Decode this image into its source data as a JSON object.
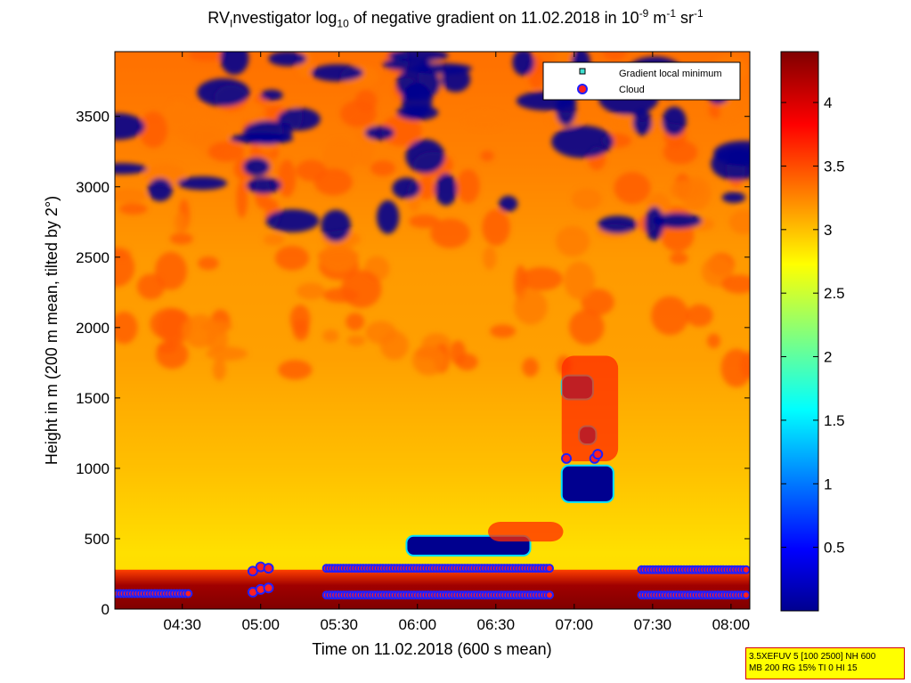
{
  "title": {
    "prefix": "RV",
    "sub1": "I",
    "part2": "nvestigator log",
    "sub2": "10",
    "part3": " of negative gradient on 11.02.2018 in 10",
    "sup1": "-9",
    "part4": " m",
    "sup2": "-1",
    "part5": " sr",
    "sup3": "-1"
  },
  "info_box": {
    "line1": "3.5XEFUV 5 [100 2500] NH 600",
    "line2": "MB 200 RG 15% TI 0 HI 15"
  },
  "colors": {
    "colormap": "jet",
    "cloud_fill": "#ff2020",
    "cloud_edge": "#2020ff",
    "minimum_marker": "#40e0d0"
  },
  "chart_data": {
    "type": "heatmap",
    "xlabel": "Time on 11.02.2018 (600 s mean)",
    "ylabel": "Height in m (200 m mean, tilted by 2°)",
    "x_ticks": [
      "04:30",
      "05:00",
      "05:30",
      "06:00",
      "06:30",
      "07:00",
      "07:30",
      "08:00"
    ],
    "x_tick_hours": [
      4.5,
      5.0,
      5.5,
      6.0,
      6.5,
      7.0,
      7.5,
      8.0
    ],
    "xlim_hours": [
      4.07,
      8.12
    ],
    "y_ticks": [
      0,
      500,
      1000,
      1500,
      2000,
      2500,
      3000,
      3500
    ],
    "ylim": [
      0,
      3960
    ],
    "colorbar": {
      "ticks": [
        0.5,
        1,
        1.5,
        2,
        2.5,
        3,
        3.5,
        4
      ],
      "range": [
        0,
        4.4
      ]
    },
    "legend": {
      "position": "top-right",
      "entries": [
        {
          "name": "Gradient local minimum",
          "marker": "square",
          "color": "#40e0d0"
        },
        {
          "name": "Cloud",
          "marker": "circle",
          "color": "#ff2020",
          "edge": "#2020ff"
        }
      ]
    },
    "low_value_regions": [
      {
        "t0": 5.93,
        "t1": 6.72,
        "h0": 380,
        "h1": 520
      },
      {
        "t0": 6.92,
        "t1": 7.25,
        "h0": 760,
        "h1": 1020
      },
      {
        "t0": 6.92,
        "t1": 7.12,
        "h0": 1490,
        "h1": 1660
      },
      {
        "t0": 7.03,
        "t1": 7.14,
        "h0": 1170,
        "h1": 1300
      }
    ],
    "high_value_regions": [
      {
        "t0": 6.92,
        "t1": 7.28,
        "h0": 1050,
        "h1": 1800
      },
      {
        "t0": 6.45,
        "t1": 6.93,
        "h0": 480,
        "h1": 620
      }
    ],
    "cloud_points": [
      {
        "t": 6.95,
        "h": 1070
      },
      {
        "t": 7.13,
        "h": 1070
      },
      {
        "t": 7.15,
        "h": 1100
      },
      {
        "t": 4.95,
        "h": 270
      },
      {
        "t": 5.0,
        "h": 300
      },
      {
        "t": 5.05,
        "h": 290
      },
      {
        "t": 4.95,
        "h": 120
      },
      {
        "t": 5.0,
        "h": 140
      },
      {
        "t": 5.05,
        "h": 150
      }
    ],
    "cloud_bands": [
      {
        "t0": 5.42,
        "t1": 6.85,
        "h": 290
      },
      {
        "t0": 7.43,
        "t1": 8.1,
        "h": 280
      },
      {
        "t0": 4.07,
        "t1": 4.55,
        "h": 110
      },
      {
        "t0": 5.42,
        "t1": 6.85,
        "h": 100
      },
      {
        "t0": 7.43,
        "t1": 8.1,
        "h": 100
      }
    ]
  }
}
